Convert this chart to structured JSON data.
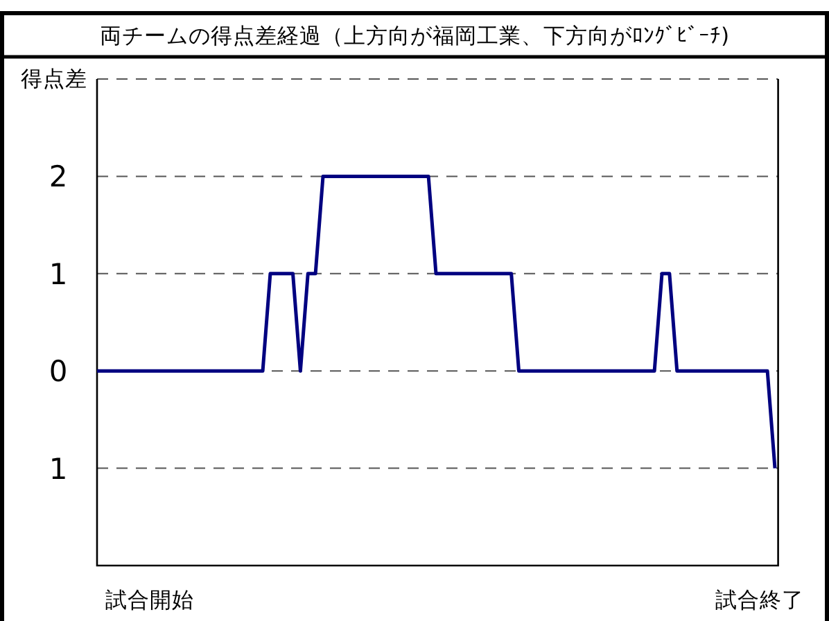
{
  "chart_data": {
    "type": "line",
    "title": "両チームの得点差経過（上方向が福岡工業、下方向がﾛﾝｸﾞﾋﾞｰﾁ)",
    "ylabel": "得点差",
    "categories": [
      null,
      null,
      null,
      null,
      null,
      null,
      null,
      "試合開始",
      null,
      null,
      null,
      null,
      null,
      null,
      null,
      null,
      null,
      null,
      null,
      null,
      null,
      null,
      null,
      null,
      null,
      null,
      null,
      null,
      null,
      null,
      null,
      null,
      null,
      null,
      null,
      null,
      null,
      null,
      null,
      null,
      null,
      null,
      null,
      null,
      null,
      null,
      null,
      null,
      null,
      null,
      null,
      null,
      null,
      null,
      null,
      null,
      null,
      null,
      null,
      null,
      null,
      null,
      null,
      null,
      null,
      null,
      null,
      null,
      null,
      null,
      null,
      null,
      null,
      null,
      null,
      null,
      null,
      null,
      null,
      null,
      null,
      null,
      null,
      null,
      null,
      null,
      null,
      null,
      "試合終了",
      null,
      null
    ],
    "values": [
      0,
      0,
      0,
      0,
      0,
      0,
      0,
      0,
      0,
      0,
      0,
      0,
      0,
      0,
      0,
      0,
      0,
      0,
      0,
      0,
      0,
      0,
      0,
      1,
      1,
      1,
      1,
      0,
      1,
      1,
      2,
      2,
      2,
      2,
      2,
      2,
      2,
      2,
      2,
      2,
      2,
      2,
      2,
      2,
      2,
      1,
      1,
      1,
      1,
      1,
      1,
      1,
      1,
      1,
      1,
      1,
      0,
      0,
      0,
      0,
      0,
      0,
      0,
      0,
      0,
      0,
      0,
      0,
      0,
      0,
      0,
      0,
      0,
      0,
      0,
      1,
      1,
      0,
      0,
      0,
      0,
      0,
      0,
      0,
      0,
      0,
      0,
      0,
      0,
      0,
      -1
    ],
    "color": "#000080",
    "ylim": [
      -2,
      3
    ],
    "yticks": [
      {
        "value": -1,
        "label": "1"
      },
      0,
      1,
      2,
      {
        "value": 3,
        "label": null
      }
    ],
    "grid": "y"
  }
}
